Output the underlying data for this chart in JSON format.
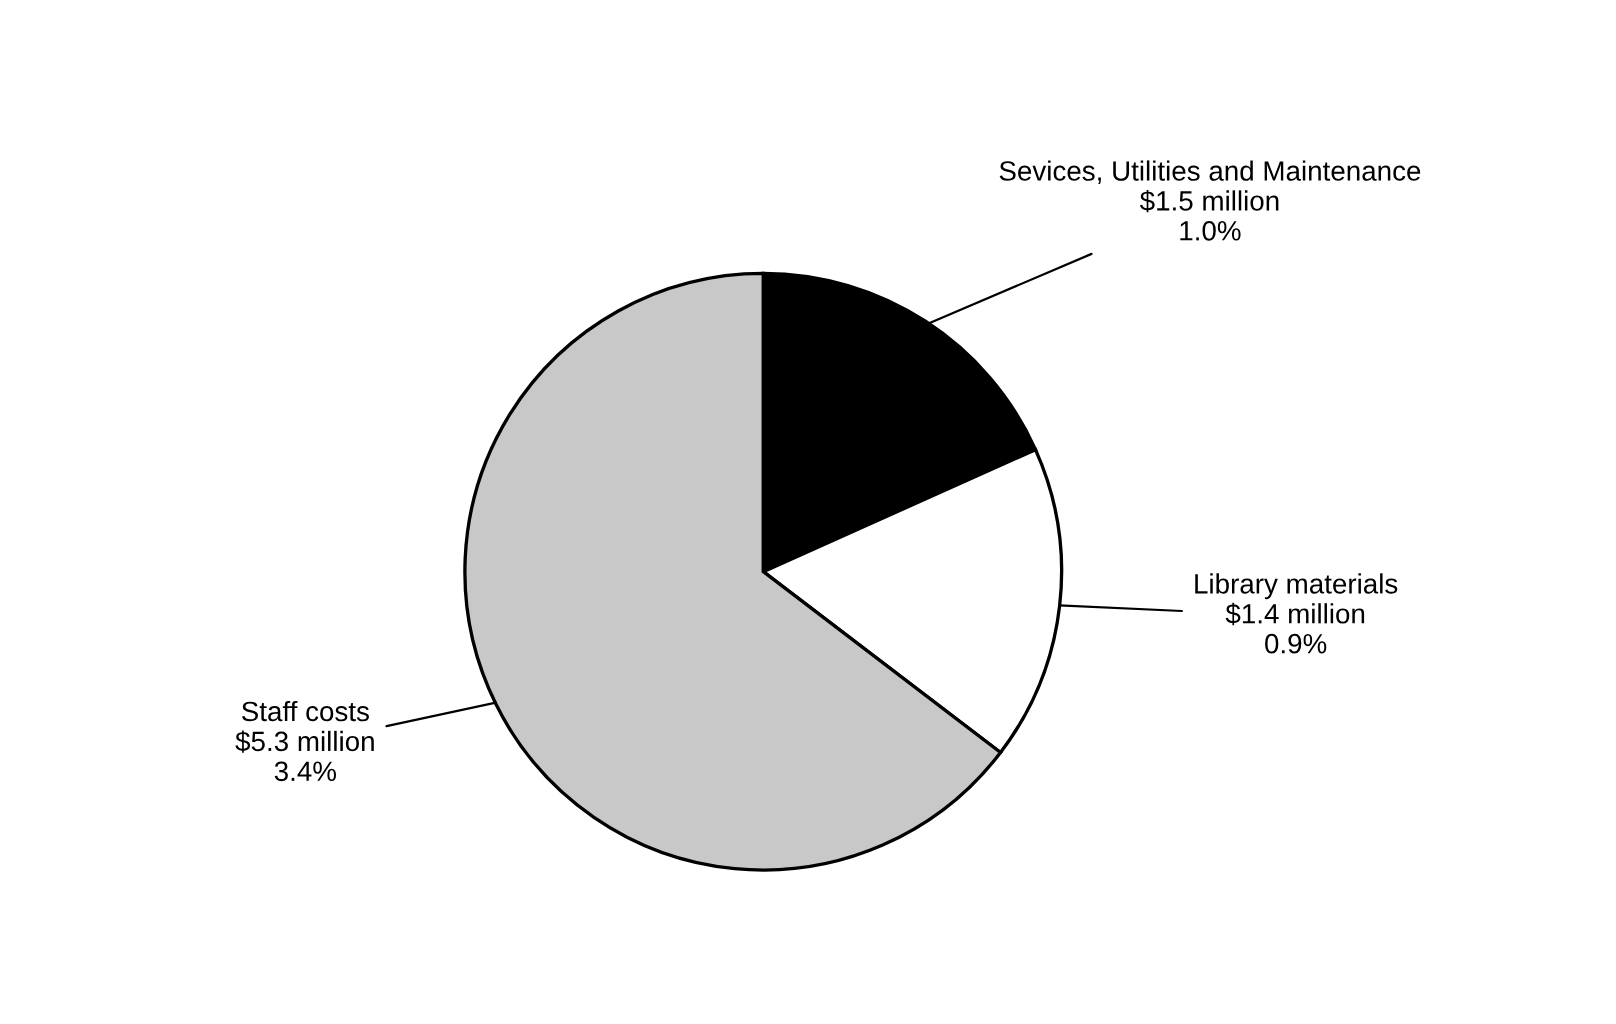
{
  "chart_data": {
    "type": "pie",
    "categories": [
      "Sevices, Utilities and Maintenance",
      "Library materials",
      "Staff costs"
    ],
    "values": [
      1.5,
      1.4,
      5.3
    ],
    "value_labels": [
      "$1.5 million",
      "$1.4 million",
      "$5.3 million"
    ],
    "annotations": [
      "1.0%",
      "0.9%",
      "3.4%"
    ],
    "colors": [
      "#000000",
      "#ffffff",
      "#c8c8c8"
    ]
  }
}
